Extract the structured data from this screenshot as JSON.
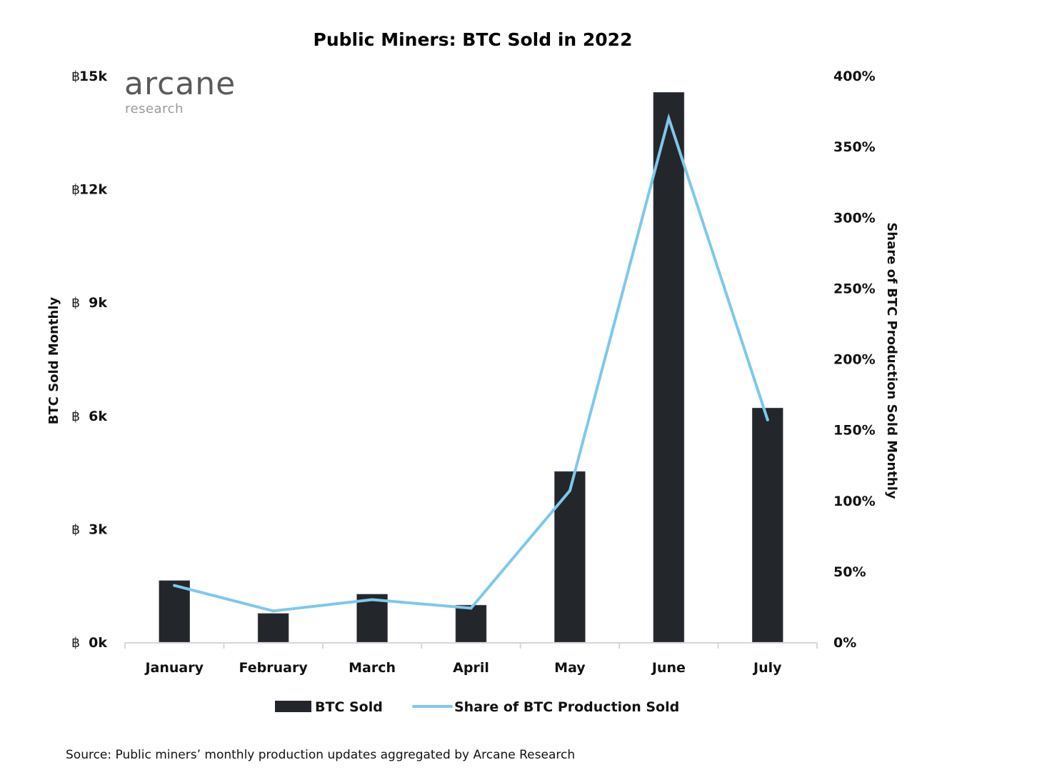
{
  "chart_data": {
    "type": "bar+line",
    "title": "Public Miners: BTC Sold in 2022",
    "categories": [
      "January",
      "February",
      "March",
      "April",
      "May",
      "June",
      "July"
    ],
    "series": [
      {
        "name": "BTC Sold",
        "type": "bar",
        "axis": "left",
        "unit": "BTC",
        "values": [
          1630,
          760,
          1270,
          980,
          4520,
          14560,
          6200
        ],
        "color": "#23262b"
      },
      {
        "name": "Share of BTC Production Sold",
        "type": "line",
        "axis": "right",
        "unit": "%",
        "values": [
          40,
          22,
          30,
          24,
          107,
          370,
          157
        ],
        "color": "#7ec8ec"
      }
    ],
    "ylabel_left": "BTC Sold Monthly",
    "ylabel_right": "Share of BTC Production Sold Monthly",
    "ylim_left": [
      0,
      15000
    ],
    "ylim_right": [
      0,
      400
    ],
    "yticks_left": [
      {
        "value": 0,
        "label": "0k"
      },
      {
        "value": 3000,
        "label": "3k"
      },
      {
        "value": 6000,
        "label": "6k"
      },
      {
        "value": 9000,
        "label": "9k"
      },
      {
        "value": 12000,
        "label": "12k"
      },
      {
        "value": 15000,
        "label": "15k"
      }
    ],
    "currency_symbol": "฿",
    "yticks_right": [
      {
        "value": 0,
        "label": "0%"
      },
      {
        "value": 50,
        "label": "50%"
      },
      {
        "value": 100,
        "label": "100%"
      },
      {
        "value": 150,
        "label": "150%"
      },
      {
        "value": 200,
        "label": "200%"
      },
      {
        "value": 250,
        "label": "250%"
      },
      {
        "value": 300,
        "label": "300%"
      },
      {
        "value": 350,
        "label": "350%"
      },
      {
        "value": 400,
        "label": "400%"
      }
    ],
    "grid": false,
    "legend_position": "bottom-center",
    "legend": [
      "BTC Sold",
      "Share of BTC Production Sold"
    ]
  },
  "logo": {
    "main": "arcane",
    "sub": "research"
  },
  "source": "Source: Public miners’ monthly production updates aggregated by Arcane Research"
}
